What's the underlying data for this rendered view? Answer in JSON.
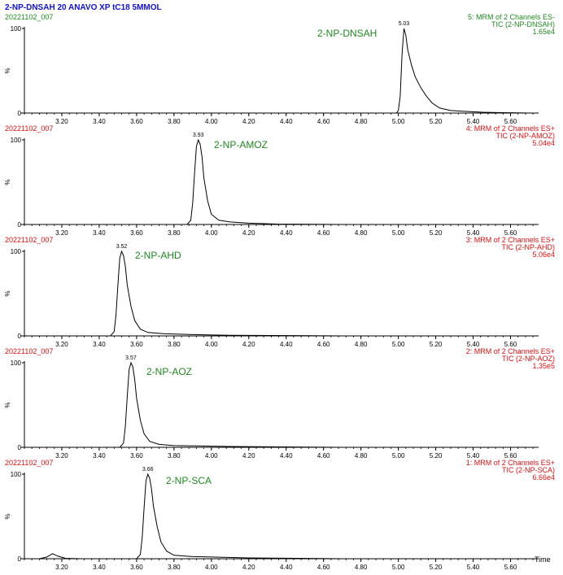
{
  "title": "2-NP-DNSAH 20 ANAVO  XP tC18 5MMOL",
  "colors": {
    "title": "#1010e0",
    "first_panel": "#1f8a1f",
    "other_panels": "#e01010",
    "compound_label": "#1f8a1f",
    "trace": "#000000"
  },
  "x_axis_unit": "Time",
  "y_axis_label": "%",
  "chart_data": [
    {
      "type": "line",
      "sample": "20221102_007",
      "function": "5: MRM of 2 Channels ES-",
      "channel": "TIC (2-NP-DNSAH)",
      "intensity": "1.65e4",
      "compound": "2-NP-DNSAH",
      "apex_label": "5.03",
      "xlim": [
        3.0,
        5.75
      ],
      "ylim": [
        0,
        100
      ],
      "yticks": [
        {
          "v": 0,
          "label": "0"
        },
        {
          "v": 100,
          "label": "100"
        }
      ],
      "xticks": [
        "3.20",
        "3.40",
        "3.60",
        "3.80",
        "4.00",
        "4.20",
        "4.40",
        "4.60",
        "4.80",
        "5.00",
        "5.20",
        "5.40",
        "5.60"
      ],
      "series": [
        {
          "x": [
            2.98,
            4.99,
            5.0,
            5.01,
            5.02,
            5.03,
            5.04,
            5.05,
            5.07,
            5.09,
            5.12,
            5.15,
            5.18,
            5.22,
            5.28,
            5.35,
            5.45,
            5.55,
            5.7
          ],
          "y": [
            0,
            0,
            3,
            20,
            70,
            100,
            92,
            75,
            57,
            43,
            30,
            20,
            12,
            6,
            3,
            2,
            1,
            0.5,
            0
          ]
        }
      ]
    },
    {
      "type": "line",
      "sample": "20221102_007",
      "function": "4: MRM of 2 Channels ES+",
      "channel": "TIC (2-NP-AMOZ)",
      "intensity": "5.04e4",
      "compound": "2-NP-AMOZ",
      "apex_label": "3.93",
      "xlim": [
        3.0,
        5.75
      ],
      "ylim": [
        0,
        100
      ],
      "yticks": [
        {
          "v": 0,
          "label": "0"
        },
        {
          "v": 100,
          "label": "100"
        }
      ],
      "xticks": [
        "3.20",
        "3.40",
        "3.60",
        "3.80",
        "4.00",
        "4.20",
        "4.40",
        "4.60",
        "4.80",
        "5.00",
        "5.20",
        "5.40",
        "5.60"
      ],
      "series": [
        {
          "x": [
            2.98,
            3.87,
            3.89,
            3.9,
            3.91,
            3.92,
            3.93,
            3.94,
            3.95,
            3.96,
            3.98,
            4.0,
            4.04,
            4.1,
            4.2,
            4.35,
            4.7
          ],
          "y": [
            0,
            0,
            5,
            25,
            60,
            92,
            100,
            95,
            80,
            55,
            28,
            12,
            5,
            3,
            1.5,
            0.5,
            0
          ]
        }
      ]
    },
    {
      "type": "line",
      "sample": "20221102_007",
      "function": "3: MRM of 2 Channels ES+",
      "channel": "TIC (2-NP-AHD)",
      "intensity": "5.06e4",
      "compound": "2-NP-AHD",
      "apex_label": "3.52",
      "xlim": [
        3.0,
        5.75
      ],
      "ylim": [
        0,
        100
      ],
      "yticks": [
        {
          "v": 0,
          "label": "0"
        },
        {
          "v": 100,
          "label": "100"
        }
      ],
      "xticks": [
        "3.20",
        "3.40",
        "3.60",
        "3.80",
        "4.00",
        "4.20",
        "4.40",
        "4.60",
        "4.80",
        "5.00",
        "5.20",
        "5.40",
        "5.60"
      ],
      "series": [
        {
          "x": [
            2.98,
            3.46,
            3.48,
            3.49,
            3.5,
            3.51,
            3.52,
            3.53,
            3.54,
            3.55,
            3.57,
            3.59,
            3.62,
            3.66,
            3.75,
            3.9,
            4.1,
            4.7
          ],
          "y": [
            0,
            0,
            5,
            25,
            60,
            92,
            100,
            95,
            82,
            60,
            35,
            18,
            8,
            4,
            2.5,
            1.5,
            0.8,
            0
          ]
        }
      ]
    },
    {
      "type": "line",
      "sample": "20221102_007",
      "function": "2: MRM of 2 Channels ES+",
      "channel": "TIC (2-NP-AOZ)",
      "intensity": "1.35e5",
      "compound": "2-NP-AOZ",
      "apex_label": "3.57",
      "xlim": [
        3.0,
        5.75
      ],
      "ylim": [
        0,
        100
      ],
      "yticks": [
        {
          "v": 0,
          "label": "0"
        },
        {
          "v": 100,
          "label": "100"
        }
      ],
      "xticks": [
        "3.20",
        "3.40",
        "3.60",
        "3.80",
        "4.00",
        "4.20",
        "4.40",
        "4.60",
        "4.80",
        "5.00",
        "5.20",
        "5.40",
        "5.60"
      ],
      "series": [
        {
          "x": [
            2.98,
            3.51,
            3.53,
            3.54,
            3.55,
            3.56,
            3.57,
            3.58,
            3.59,
            3.6,
            3.62,
            3.64,
            3.67,
            3.72,
            3.8,
            3.95,
            4.1,
            4.7
          ],
          "y": [
            0,
            0,
            5,
            25,
            60,
            92,
            100,
            95,
            80,
            58,
            32,
            16,
            7,
            3.5,
            2,
            1.5,
            1,
            0
          ]
        }
      ]
    },
    {
      "type": "line",
      "sample": "20221102_007",
      "function": "1: MRM of 2 Channels ES+",
      "channel": "TIC (2-NP-SCA)",
      "intensity": "6.66e4",
      "compound": "2-NP-SCA",
      "apex_label": "3.66",
      "xlim": [
        3.0,
        5.75
      ],
      "ylim": [
        0,
        100
      ],
      "yticks": [
        {
          "v": 0,
          "label": "0"
        },
        {
          "v": 100,
          "label": "100"
        }
      ],
      "xticks": [
        "3.20",
        "3.40",
        "3.60",
        "3.80",
        "4.00",
        "4.20",
        "4.40",
        "4.60",
        "4.80",
        "5.00",
        "5.20",
        "5.40",
        "5.60"
      ],
      "series": [
        {
          "x": [
            2.98,
            3.08,
            3.12,
            3.15,
            3.18,
            3.22,
            3.3,
            3.6,
            3.62,
            3.63,
            3.64,
            3.65,
            3.66,
            3.67,
            3.68,
            3.69,
            3.71,
            3.73,
            3.76,
            3.8,
            3.9,
            4.0,
            4.2,
            4.7
          ],
          "y": [
            0,
            0,
            2,
            6,
            3,
            0.5,
            0,
            0,
            5,
            25,
            60,
            92,
            100,
            95,
            82,
            62,
            38,
            20,
            9,
            4,
            2.5,
            2,
            1,
            0
          ]
        }
      ]
    }
  ]
}
